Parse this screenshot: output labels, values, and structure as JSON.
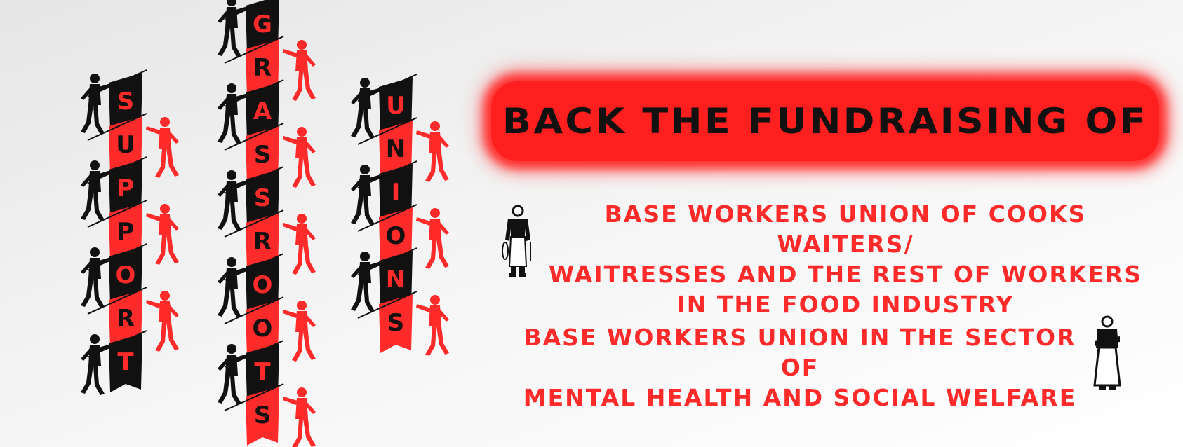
{
  "banners": {
    "support": [
      "S",
      "U",
      "P",
      "P",
      "O",
      "R",
      "T"
    ],
    "grassroots": [
      "G",
      "R",
      "A",
      "S",
      "S",
      "R",
      "O",
      "O",
      "T",
      "S"
    ],
    "unions": [
      "U",
      "N",
      "I",
      "O",
      "N",
      "S"
    ]
  },
  "headline": "BACK THE FUNDRAISING OF",
  "unions": [
    {
      "lines": [
        "Base workers union of cooks waiters/",
        "waitresses and the rest of workers",
        "in the food  industry"
      ],
      "icon": "waiter-icon"
    },
    {
      "lines": [
        "Base workers union in the sector of",
        "mental health and social welfare"
      ],
      "icon": "carer-icon"
    }
  ],
  "colors": {
    "red": "#ff2a2a",
    "black": "#111111",
    "background": "#eeeeee"
  }
}
